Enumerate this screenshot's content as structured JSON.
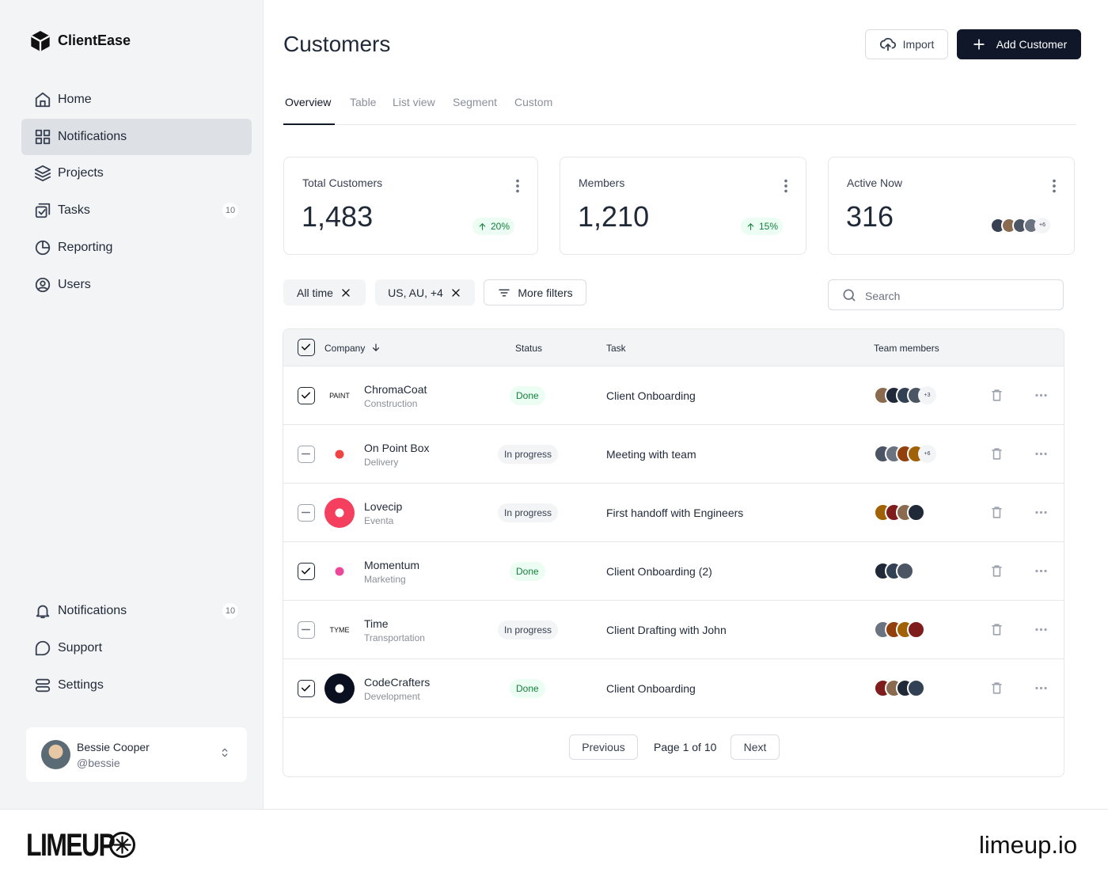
{
  "sidebar": {
    "brand": "ClientEase",
    "nav": [
      {
        "label": "Home"
      },
      {
        "label": "Notifications",
        "active": true
      },
      {
        "label": "Projects"
      },
      {
        "label": "Tasks",
        "badge": "10"
      },
      {
        "label": "Reporting"
      },
      {
        "label": "Users"
      }
    ],
    "bottom_nav": [
      {
        "label": "Notifications",
        "badge": "10"
      },
      {
        "label": "Support"
      },
      {
        "label": "Settings"
      }
    ],
    "user": {
      "name": "Bessie Cooper",
      "handle": "@bessie"
    }
  },
  "header": {
    "title": "Customers",
    "import": "Import",
    "add": "Add Customer"
  },
  "tabs": [
    {
      "label": "Overview",
      "active": true
    },
    {
      "label": "Table"
    },
    {
      "label": "List view"
    },
    {
      "label": "Segment"
    },
    {
      "label": "Custom"
    }
  ],
  "stats": [
    {
      "label": "Total Customers",
      "value": "1,483",
      "change": "20%"
    },
    {
      "label": "Members",
      "value": "1,210",
      "change": "15%"
    },
    {
      "label": "Active Now",
      "value": "316",
      "more": "+6"
    }
  ],
  "filters": [
    {
      "label": "All time",
      "removable": true
    },
    {
      "label": "US, AU, +4",
      "removable": true
    },
    {
      "label": "More filters"
    }
  ],
  "search": "Search",
  "table": {
    "columns": [
      "Company",
      "Status",
      "Task",
      "Team members"
    ],
    "rows": [
      {
        "company": "ChromaCoat",
        "industry": "Construction",
        "status": "Done",
        "task": "Client Onboarding",
        "more": "+3",
        "avatars": 4,
        "check": "checked",
        "logo_text": "PAINT",
        "logo_color": "#ffffff"
      },
      {
        "company": "On Point Box",
        "industry": "Delivery",
        "status": "In progress",
        "task": "Meeting with team",
        "more": "+6",
        "avatars": 4,
        "check": "partial",
        "logo_color": "#ffffff"
      },
      {
        "company": "Lovecip",
        "industry": "Eventa",
        "status": "In progress",
        "task": "First handoff with Engineers",
        "avatars": 4,
        "check": "partial",
        "logo_color": "#f43f5e"
      },
      {
        "company": "Momentum",
        "industry": "Marketing",
        "status": "Done",
        "task": "Client Onboarding (2)",
        "avatars": 3,
        "check": "checked",
        "logo_color": "#ffffff"
      },
      {
        "company": "Time",
        "industry": "Transportation",
        "status": "In progress",
        "task": "Client Drafting with John",
        "avatars": 4,
        "check": "partial",
        "logo_text": "TYME",
        "logo_color": "#ffffff"
      },
      {
        "company": "CodeCrafters",
        "industry": "Development",
        "status": "Done",
        "task": "Client Onboarding",
        "avatars": 4,
        "check": "checked",
        "logo_color": "#0b1020"
      }
    ]
  },
  "pagination": {
    "previous": "Previous",
    "page": "Page 1 of 10",
    "next": "Next"
  },
  "footer": {
    "brand": "LIMEUP",
    "site": "limeup.io"
  }
}
